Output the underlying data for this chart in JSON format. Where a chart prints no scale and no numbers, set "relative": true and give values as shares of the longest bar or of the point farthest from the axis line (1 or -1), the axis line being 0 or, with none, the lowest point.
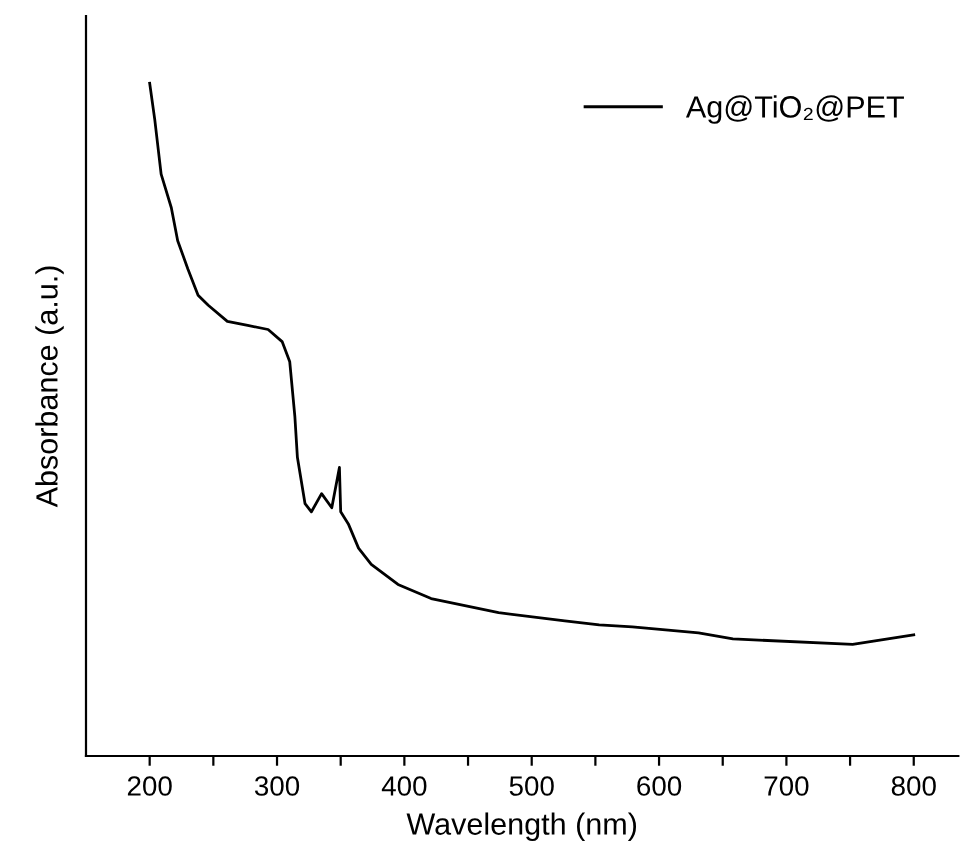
{
  "chart_data": {
    "type": "line",
    "relative": true,
    "xlabel": "Wavelength (nm)",
    "ylabel": "Absorbance (a.u.)",
    "xlim": [
      150,
      835
    ],
    "xticks": [
      200,
      {
        "value": 250,
        "label": null
      },
      300,
      {
        "value": 350,
        "label": null
      },
      400,
      {
        "value": 450,
        "label": null
      },
      500,
      {
        "value": 550,
        "label": null
      },
      600,
      {
        "value": 650,
        "label": null
      },
      700,
      {
        "value": 750,
        "label": null
      },
      800
    ],
    "legend": "top right",
    "grid": false,
    "tick_labels": "x",
    "series": [
      {
        "name": "Ag@TiO₂@PET",
        "color": "#000000",
        "x": [
          200,
          204,
          209,
          217,
          222,
          230,
          238,
          246,
          261,
          277,
          293,
          304,
          310,
          314,
          316,
          322,
          327,
          335,
          343,
          349,
          350,
          356,
          364,
          374,
          395,
          421,
          474,
          526,
          553,
          579,
          631,
          658,
          752,
          800
        ],
        "values": [
          1.0,
          0.946,
          0.865,
          0.815,
          0.766,
          0.724,
          0.685,
          0.67,
          0.646,
          0.64,
          0.634,
          0.616,
          0.586,
          0.505,
          0.444,
          0.375,
          0.363,
          0.39,
          0.369,
          0.429,
          0.363,
          0.345,
          0.309,
          0.285,
          0.255,
          0.234,
          0.213,
          0.201,
          0.195,
          0.192,
          0.183,
          0.174,
          0.166,
          0.18
        ]
      }
    ]
  }
}
